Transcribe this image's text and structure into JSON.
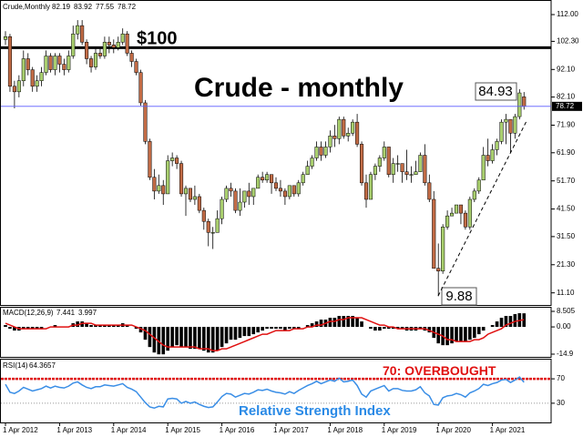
{
  "chart_data": [
    {
      "type": "candlestick",
      "header": "Crude,Monthly",
      "title": "Crude - monthly",
      "categories": [
        "1 Apr 2012",
        null,
        null,
        null,
        null,
        null,
        null,
        null,
        null,
        null,
        null,
        null,
        "1 Apr 2013",
        null,
        null,
        null,
        null,
        null,
        null,
        null,
        null,
        null,
        null,
        null,
        "1 Apr 2014",
        null,
        null,
        null,
        null,
        null,
        null,
        null,
        null,
        null,
        null,
        null,
        "1 Apr 2015",
        null,
        null,
        null,
        null,
        null,
        null,
        null,
        null,
        null,
        null,
        null,
        "1 Apr 2016",
        null,
        null,
        null,
        null,
        null,
        null,
        null,
        null,
        null,
        null,
        null,
        "1 Apr 2017",
        null,
        null,
        null,
        null,
        null,
        null,
        null,
        null,
        null,
        null,
        null,
        "1 Apr 2018",
        null,
        null,
        null,
        null,
        null,
        null,
        null,
        null,
        null,
        null,
        null,
        "1 Apr 2019",
        null,
        null,
        null,
        null,
        null,
        null,
        null,
        null,
        null,
        null,
        null,
        "1 Apr 2020",
        null,
        null,
        null,
        null,
        null,
        null,
        null,
        null,
        null,
        null,
        null,
        "1 Apr 2021",
        null,
        null,
        null,
        null,
        null,
        null,
        null
      ],
      "open": [
        103,
        104,
        86,
        84,
        88,
        96,
        92,
        86,
        88,
        91,
        97,
        92,
        97,
        94,
        92,
        97,
        105,
        108,
        102,
        96,
        93,
        98,
        97,
        102,
        101,
        100,
        102,
        105,
        98,
        95,
        91,
        80,
        66,
        53,
        48,
        50,
        47,
        59,
        60,
        58,
        47,
        49,
        45,
        46,
        41,
        37,
        33,
        33,
        38,
        45,
        49,
        48,
        41,
        44,
        48,
        46,
        49,
        53,
        52,
        54,
        51,
        49,
        48,
        46,
        50,
        47,
        51,
        54,
        57,
        60,
        64,
        61,
        64,
        68,
        67,
        74,
        68,
        69,
        73,
        65,
        51,
        45,
        54,
        57,
        60,
        64,
        54,
        58,
        58,
        55,
        54,
        54,
        55,
        61,
        51,
        45,
        20,
        19,
        35,
        39,
        40,
        43,
        40,
        35,
        45,
        48,
        52,
        61,
        59,
        63,
        66,
        73,
        74,
        69,
        75,
        82.19
      ],
      "high": [
        106,
        105,
        88,
        90,
        99,
        98,
        93,
        90,
        93,
        99,
        98,
        98,
        98,
        96,
        99,
        108,
        110,
        110,
        103,
        97,
        100,
        100,
        104,
        104,
        103,
        104,
        107,
        106,
        99,
        96,
        92,
        81,
        67,
        56,
        54,
        52,
        61,
        62,
        61,
        59,
        50,
        49,
        50,
        47,
        42,
        38,
        35,
        41,
        46,
        50,
        51,
        49,
        49,
        48,
        51,
        49,
        54,
        55,
        55,
        54,
        53,
        52,
        49,
        50,
        50,
        52,
        55,
        59,
        61,
        66,
        66,
        66,
        70,
        72,
        75,
        75,
        71,
        74,
        76,
        66,
        54,
        55,
        58,
        61,
        66,
        64,
        60,
        61,
        58,
        63,
        57,
        59,
        62,
        65,
        54,
        48,
        29,
        36,
        41,
        42,
        43,
        43,
        41,
        46,
        49,
        53,
        64,
        67,
        65,
        67,
        74,
        76,
        74,
        76,
        84.93,
        83.92
      ],
      "low": [
        101,
        84,
        78,
        82,
        86,
        90,
        84,
        84,
        86,
        90,
        91,
        90,
        91,
        90,
        91,
        96,
        103,
        101,
        94,
        91,
        92,
        96,
        96,
        98,
        98,
        99,
        101,
        97,
        93,
        90,
        79,
        65,
        52,
        45,
        47,
        43,
        47,
        57,
        56,
        46,
        39,
        44,
        43,
        40,
        34,
        28,
        27,
        33,
        36,
        44,
        46,
        40,
        39,
        42,
        43,
        43,
        49,
        51,
        51,
        47,
        48,
        46,
        43,
        45,
        46,
        46,
        50,
        54,
        56,
        59,
        59,
        60,
        62,
        64,
        65,
        67,
        66,
        68,
        64,
        50,
        42,
        45,
        52,
        55,
        59,
        53,
        51,
        55,
        51,
        52,
        51,
        54,
        55,
        50,
        44,
        20,
        9.88,
        18,
        34,
        39,
        40,
        36,
        34,
        34,
        44,
        47,
        52,
        57,
        58,
        61,
        65,
        65,
        62,
        67,
        74,
        77.55
      ],
      "close": [
        104,
        86,
        84,
        88,
        96,
        92,
        86,
        88,
        91,
        97,
        92,
        97,
        94,
        92,
        97,
        105,
        108,
        102,
        96,
        93,
        98,
        97,
        102,
        101,
        100,
        102,
        105,
        98,
        95,
        91,
        80,
        66,
        53,
        48,
        50,
        47,
        59,
        60,
        58,
        47,
        49,
        45,
        46,
        41,
        37,
        33,
        33,
        38,
        45,
        49,
        48,
        41,
        44,
        48,
        46,
        49,
        53,
        52,
        54,
        51,
        49,
        48,
        46,
        50,
        47,
        51,
        54,
        57,
        60,
        64,
        61,
        64,
        68,
        67,
        74,
        68,
        69,
        73,
        65,
        51,
        45,
        54,
        57,
        60,
        64,
        54,
        58,
        58,
        55,
        54,
        54,
        55,
        61,
        51,
        45,
        20,
        19,
        35,
        39,
        40,
        43,
        40,
        35,
        45,
        48,
        52,
        61,
        59,
        63,
        66,
        73,
        74,
        69,
        75,
        83.6,
        78.72
      ],
      "colors": {
        "up": "#a9cf6e",
        "down": "#c26b45"
      },
      "ylim": [
        6.7,
        116.3
      ],
      "yticks": [
        {
          "value": 112,
          "label": "112.00"
        },
        {
          "value": 102.3,
          "label": "102.30"
        },
        {
          "value": 92.1,
          "label": "92.10"
        },
        {
          "value": 82.1,
          "label": "82.10"
        },
        {
          "value": 71.9,
          "label": "71.90"
        },
        {
          "value": 61.9,
          "label": "61.90"
        },
        {
          "value": 51.7,
          "label": "51.70"
        },
        {
          "value": 41.5,
          "label": "41.50"
        },
        {
          "value": 31.5,
          "label": "31.50"
        },
        {
          "value": 21.3,
          "label": "21.30"
        },
        {
          "value": 11.1,
          "label": "11.10"
        }
      ],
      "annotations": [
        {
          "value": 100,
          "label": "$100"
        }
      ]
    },
    {
      "type": "macd",
      "title": "MACD(12,26,9)",
      "macd": [
        1,
        -1,
        -2,
        -2,
        -1,
        -1,
        -1,
        -1,
        -1,
        0,
        0,
        1,
        0,
        0,
        0,
        2,
        3,
        3,
        2,
        1,
        1,
        1,
        1,
        1,
        1,
        1,
        2,
        1,
        0,
        -1,
        -3,
        -7,
        -11,
        -14,
        -15,
        -15,
        -13,
        -11,
        -10,
        -11,
        -11,
        -12,
        -12,
        -12,
        -13,
        -14,
        -14,
        -13,
        -11,
        -9,
        -7,
        -7,
        -6,
        -5,
        -5,
        -4,
        -3,
        -2,
        -1,
        -1,
        -1,
        -1,
        -2,
        -1,
        -1,
        -1,
        0,
        1,
        2,
        3,
        4,
        4,
        5,
        5,
        6,
        6,
        6,
        6,
        5,
        3,
        0,
        -1,
        -2,
        -2,
        -1,
        -1,
        -1,
        -1,
        -1,
        -2,
        -2,
        -2,
        -1,
        -2,
        -3,
        -6,
        -9,
        -10,
        -10,
        -9,
        -8,
        -8,
        -8,
        -7,
        -6,
        -4,
        -2,
        0,
        1,
        3,
        5,
        6,
        6,
        7,
        7.5,
        7.441
      ],
      "signal": [
        2,
        1,
        0,
        -1,
        -1,
        -1,
        -1,
        -1,
        -1,
        -1,
        0,
        0,
        0,
        0,
        0,
        1,
        1,
        2,
        2,
        2,
        1,
        1,
        1,
        1,
        1,
        1,
        1,
        1,
        1,
        0,
        -1,
        -2,
        -4,
        -6,
        -8,
        -10,
        -11,
        -11,
        -11,
        -11,
        -11,
        -11,
        -11,
        -12,
        -12,
        -12,
        -13,
        -13,
        -12,
        -12,
        -11,
        -10,
        -9,
        -8,
        -7,
        -6,
        -5,
        -4,
        -4,
        -3,
        -2,
        -2,
        -2,
        -2,
        -1,
        -1,
        -1,
        0,
        0,
        1,
        1,
        2,
        3,
        3,
        4,
        4,
        5,
        5,
        5,
        5,
        4,
        3,
        2,
        1,
        1,
        0,
        0,
        -1,
        -1,
        -1,
        -1,
        -1,
        -1,
        -1,
        -2,
        -3,
        -4,
        -5,
        -7,
        -7,
        -8,
        -8,
        -8,
        -8,
        -7,
        -7,
        -6,
        -4,
        -3,
        -2,
        -1,
        1,
        2,
        3,
        3.5,
        3.997
      ],
      "colors": {
        "bars": "#000000",
        "signal": "#e01010"
      },
      "ylim": [
        -16.4,
        10.5
      ],
      "yticks": [
        8.505,
        {
          "value": 0,
          "label": "0.00"
        },
        -14.9
      ]
    },
    {
      "type": "rsi",
      "title": "RSI(14)",
      "subtitle": "Relative Strength Index",
      "values": [
        61,
        48,
        46,
        50,
        56,
        53,
        50,
        52,
        54,
        58,
        55,
        58,
        56,
        55,
        58,
        63,
        65,
        60,
        56,
        54,
        57,
        57,
        60,
        59,
        58,
        60,
        62,
        56,
        53,
        49,
        40,
        31,
        24,
        22,
        25,
        24,
        37,
        38,
        37,
        30,
        33,
        30,
        32,
        28,
        25,
        23,
        24,
        32,
        41,
        46,
        45,
        40,
        43,
        46,
        45,
        48,
        52,
        51,
        53,
        50,
        48,
        47,
        45,
        49,
        46,
        51,
        55,
        59,
        62,
        66,
        62,
        65,
        68,
        66,
        71,
        65,
        66,
        68,
        59,
        45,
        40,
        50,
        53,
        56,
        59,
        50,
        54,
        54,
        51,
        50,
        50,
        52,
        57,
        47,
        42,
        28,
        27,
        39,
        42,
        43,
        46,
        44,
        40,
        47,
        50,
        54,
        61,
        59,
        62,
        64,
        68,
        69,
        64,
        68,
        73,
        64.3657
      ],
      "color": "#3a8ee6",
      "grid": true,
      "ylim": [
        0,
        100
      ],
      "yticks": [
        70,
        30
      ],
      "levels": [
        {
          "value": 70,
          "label": "70: OVERBOUGHT",
          "color": "#e01010"
        }
      ]
    }
  ]
}
